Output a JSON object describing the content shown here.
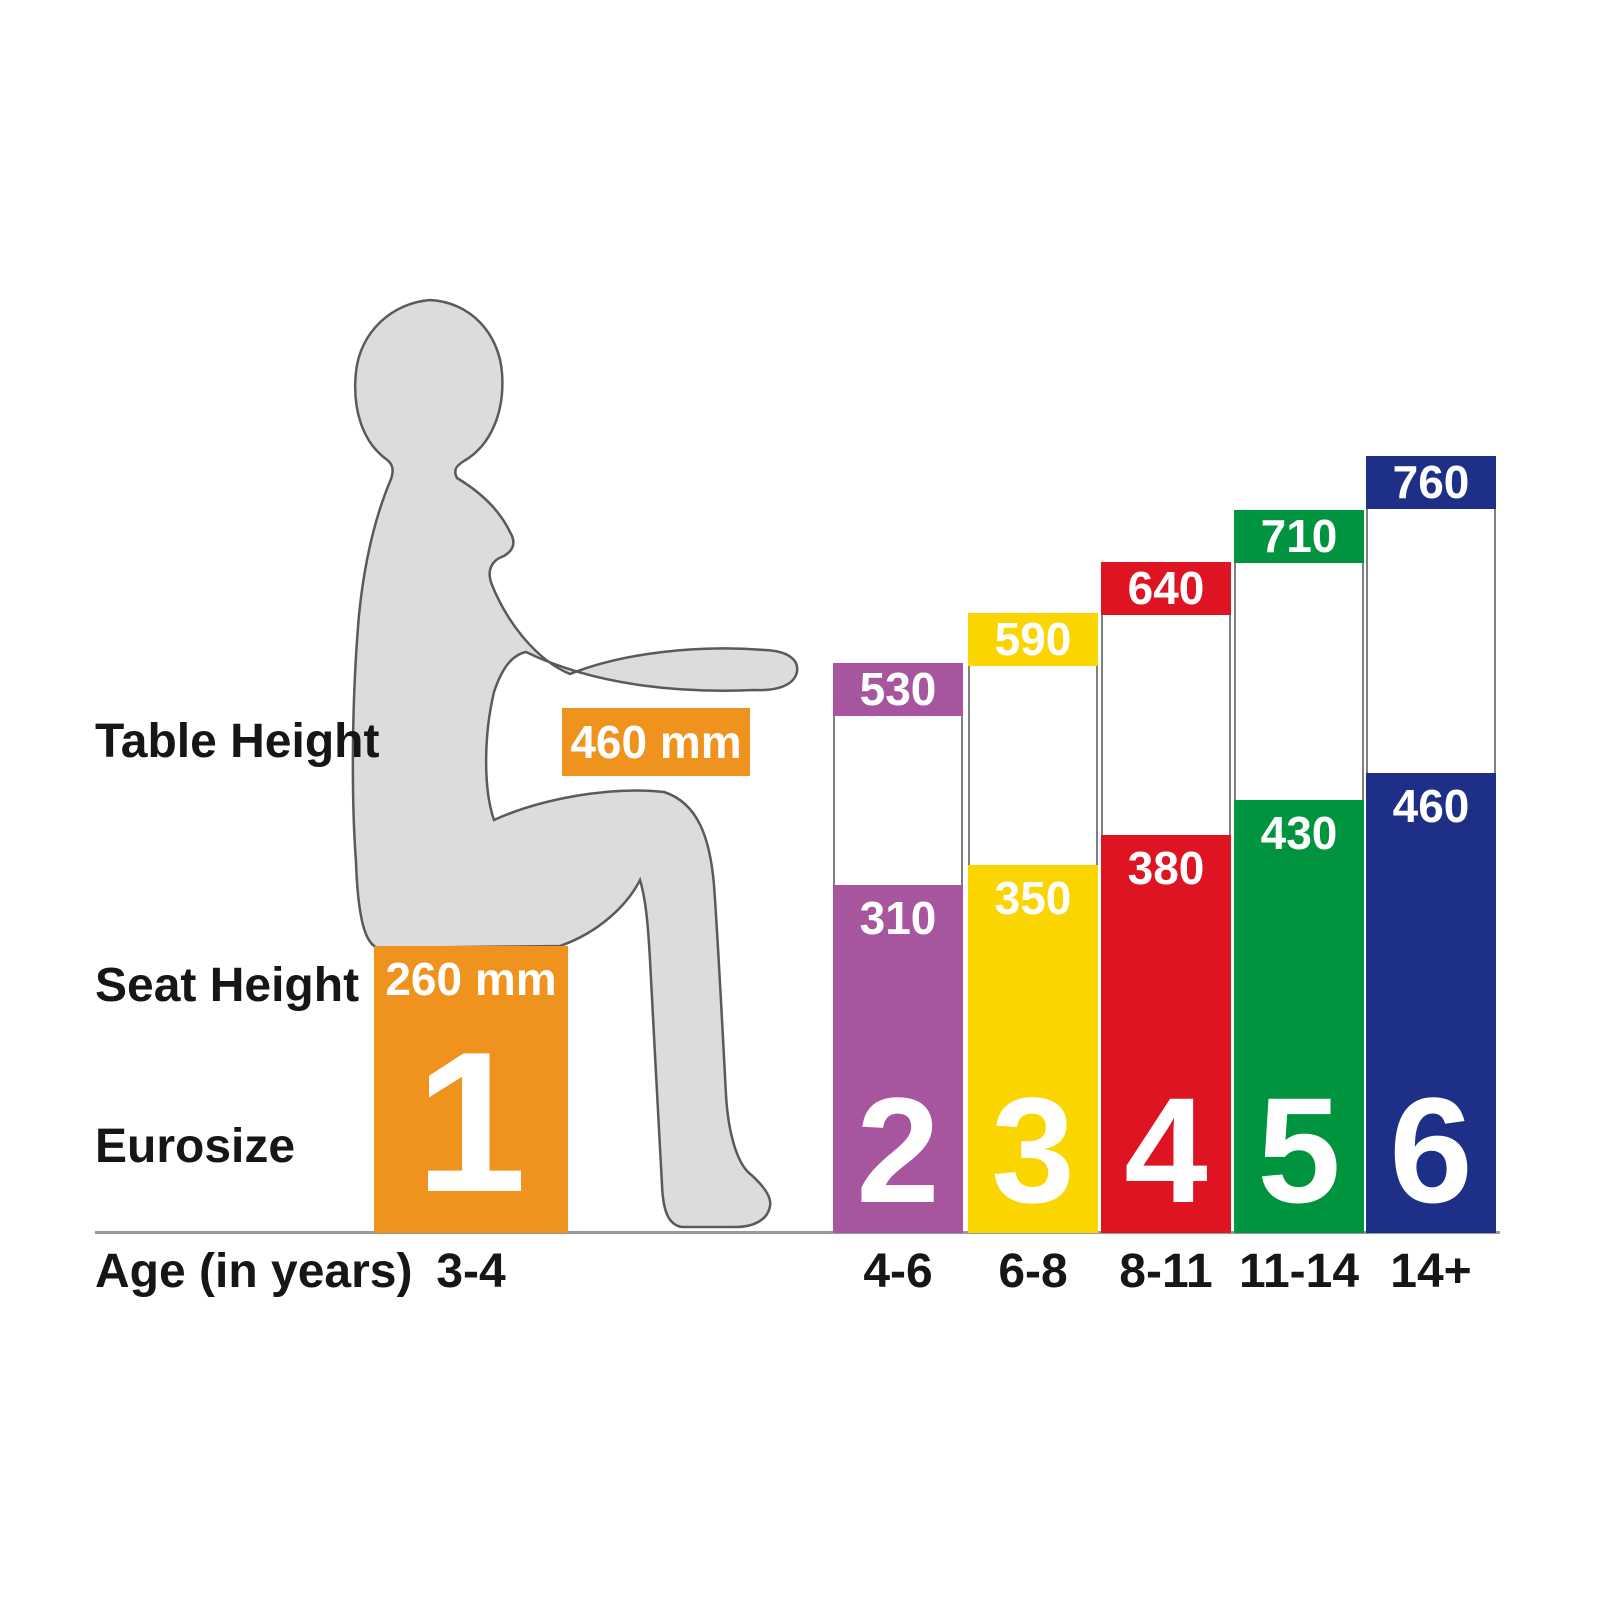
{
  "labels": {
    "table_height": "Table Height",
    "seat_height": "Seat Height",
    "eurosize": "Eurosize",
    "age": "Age (in years)"
  },
  "colors": {
    "orange": "#F0921E",
    "purple": "#A7559F",
    "yellow": "#FAD500",
    "red": "#DE1423",
    "green": "#00943E",
    "blue": "#1E2F87",
    "silhouette_fill": "#DBDCDE",
    "silhouette_outline": "#595A5C",
    "baseline_gray": "#97999C"
  },
  "chart_data": {
    "type": "bar",
    "unit": "mm",
    "x_axis_label": "Age (in years)",
    "series": [
      {
        "name": "Table Height",
        "values": [
          460,
          530,
          590,
          640,
          710,
          760
        ]
      },
      {
        "name": "Seat Height",
        "values": [
          260,
          310,
          350,
          380,
          430,
          460
        ]
      }
    ],
    "sizes": [
      {
        "eurosize": "1",
        "age": "3-4",
        "table_height_mm": 460,
        "seat_height_mm": 260,
        "table_label": "460 mm",
        "seat_label": "260 mm",
        "color": "#F0921E"
      },
      {
        "eurosize": "2",
        "age": "4-6",
        "table_height_mm": 530,
        "seat_height_mm": 310,
        "table_label": "530",
        "seat_label": "310",
        "color": "#A7559F"
      },
      {
        "eurosize": "3",
        "age": "6-8",
        "table_height_mm": 590,
        "seat_height_mm": 350,
        "table_label": "590",
        "seat_label": "350",
        "color": "#FAD500"
      },
      {
        "eurosize": "4",
        "age": "8-11",
        "table_height_mm": 640,
        "seat_height_mm": 380,
        "table_label": "640",
        "seat_label": "380",
        "color": "#DE1423"
      },
      {
        "eurosize": "5",
        "age": "11-14",
        "table_height_mm": 710,
        "seat_height_mm": 430,
        "table_label": "710",
        "seat_label": "430",
        "color": "#00943E"
      },
      {
        "eurosize": "6",
        "age": "14+",
        "table_height_mm": 760,
        "seat_height_mm": 460,
        "table_label": "760",
        "seat_label": "460",
        "color": "#1E2F87"
      }
    ]
  }
}
